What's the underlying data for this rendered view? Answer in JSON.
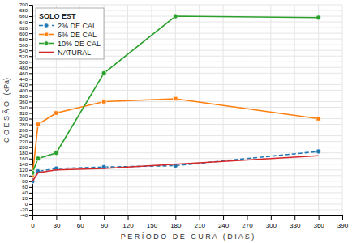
{
  "chart_data": {
    "type": "line",
    "title": "SOLO EST",
    "xlabel": "P E R Í O D O   D E   C U R A   ( D I A S )",
    "ylabel": "C O E S Ã O   (kPa)",
    "x": [
      0,
      7,
      30,
      90,
      180,
      360
    ],
    "series": [
      {
        "name": "2% DE CAL",
        "values": [
          80,
          115,
          125,
          130,
          135,
          185
        ],
        "marker": "circle",
        "line_style": "dashed"
      },
      {
        "name": "6% DE CAL",
        "values": [
          100,
          280,
          320,
          360,
          370,
          300
        ],
        "marker": "square",
        "line_style": "solid"
      },
      {
        "name": "10% DE CAL",
        "values": [
          110,
          160,
          180,
          460,
          660,
          655
        ],
        "marker": "circle",
        "line_style": "solid"
      },
      {
        "name": "NATURAL",
        "values": [
          80,
          110,
          120,
          125,
          140,
          170
        ],
        "line_style": "solid"
      }
    ],
    "xlim": [
      0,
      390
    ],
    "ylim": [
      -40,
      700
    ],
    "xticks": [
      0,
      30,
      60,
      90,
      120,
      150,
      180,
      210,
      240,
      270,
      300,
      330,
      360,
      390
    ],
    "yticks": [
      -40,
      -20,
      0,
      20,
      40,
      60,
      80,
      100,
      120,
      140,
      160,
      180,
      200,
      220,
      240,
      260,
      280,
      300,
      320,
      340,
      360,
      380,
      400,
      420,
      440,
      460,
      480,
      500,
      520,
      540,
      560,
      580,
      600,
      620,
      640,
      660,
      680,
      700
    ],
    "grid": true,
    "legend": "upper left"
  }
}
